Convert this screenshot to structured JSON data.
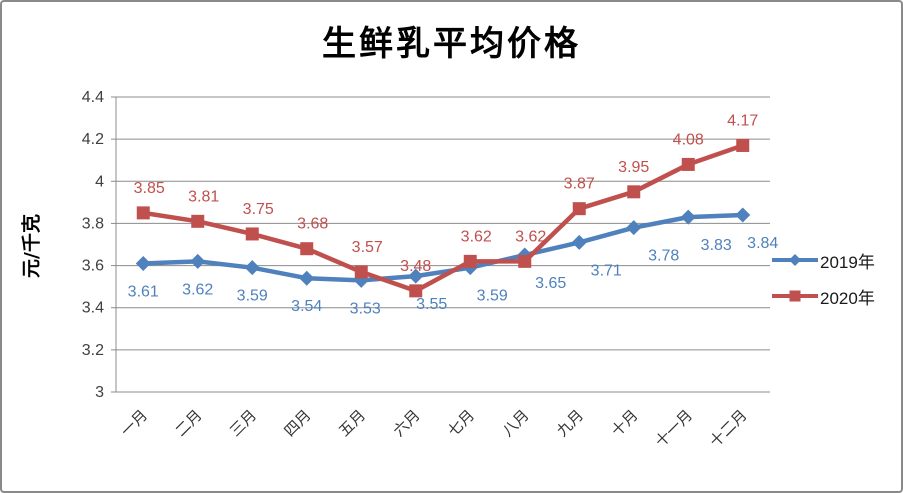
{
  "chart_data": {
    "type": "line",
    "title": "生鲜乳平均价格",
    "xlabel": "",
    "ylabel": "元/千克",
    "categories": [
      "一月",
      "二月",
      "三月",
      "四月",
      "五月",
      "六月",
      "七月",
      "八月",
      "九月",
      "十月",
      "十一月",
      "十二月"
    ],
    "series": [
      {
        "name": "2019年",
        "color": "#4F81BD",
        "marker": "diamond",
        "values": [
          3.61,
          3.62,
          3.59,
          3.54,
          3.53,
          3.55,
          3.59,
          3.65,
          3.71,
          3.78,
          3.83,
          3.84
        ],
        "label_position": "below",
        "label_dx": [
          0,
          0,
          0,
          0,
          4,
          16,
          22,
          26,
          27,
          30,
          28,
          20
        ]
      },
      {
        "name": "2020年",
        "color": "#C0504D",
        "marker": "square",
        "values": [
          3.85,
          3.81,
          3.75,
          3.68,
          3.57,
          3.48,
          3.62,
          3.62,
          3.87,
          3.95,
          4.08,
          4.17
        ],
        "label_position": "above",
        "label_dx": [
          6,
          6,
          6,
          6,
          6,
          0,
          6,
          6,
          0,
          0,
          0,
          0
        ]
      }
    ],
    "ylim": [
      3,
      4.4
    ],
    "ytick_labels": [
      "3",
      "3.2",
      "3.4",
      "3.6",
      "3.8",
      "4",
      "4.2",
      "4.4"
    ],
    "grid": true,
    "grid_color": "#8C8C8C",
    "axis_color": "#8C8C8C",
    "legend_position": "right",
    "value_decimals": 2
  }
}
